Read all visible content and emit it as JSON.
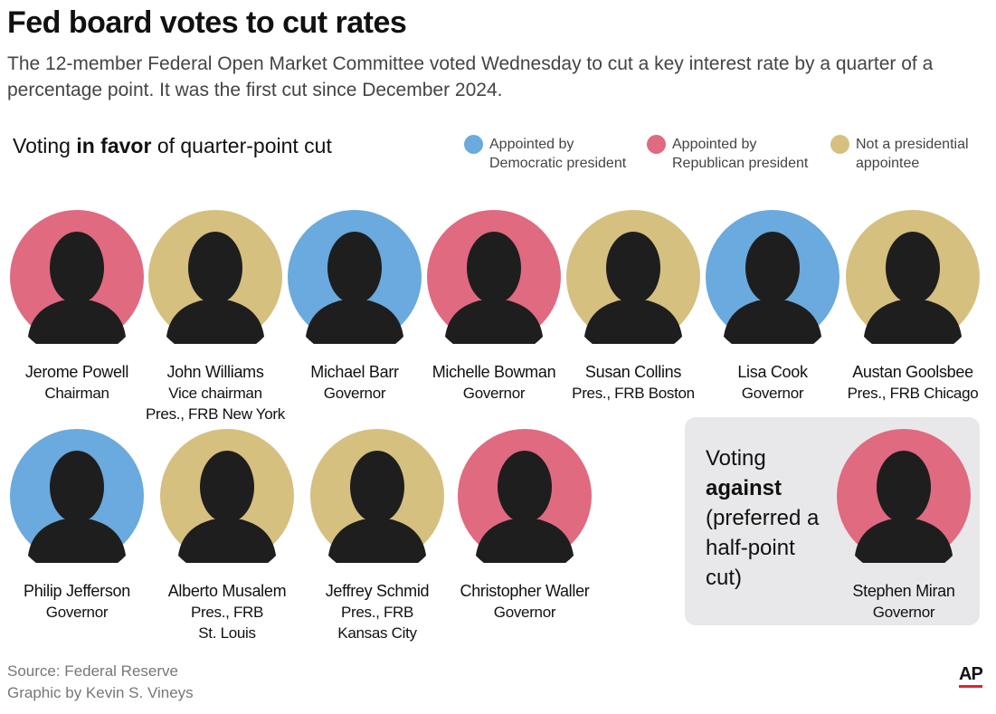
{
  "header": {
    "title": "Fed board votes to cut rates",
    "subtitle": "The 12-member Federal Open Market Committee voted Wednesday to cut a key interest rate by a quarter of a percentage point. It was the first cut since December 2024."
  },
  "in_favor": {
    "heading": [
      "Voting",
      "in favor",
      "of quarter-point cut"
    ],
    "members": [
      {
        "name": "Jerome Powell",
        "titles": [
          "Chairman"
        ],
        "color": "#e06a80"
      },
      {
        "name": "John Williams",
        "titles": [
          "Vice chairman",
          "Pres., FRB New York"
        ],
        "color": "#d6c080"
      },
      {
        "name": "Michael Barr",
        "titles": [
          "Governor"
        ],
        "color": "#6aaade"
      },
      {
        "name": "Michelle Bowman",
        "titles": [
          "Governor"
        ],
        "color": "#e06a80"
      },
      {
        "name": "Susan Collins",
        "titles": [
          "Pres., FRB Boston"
        ],
        "color": "#d6c080"
      },
      {
        "name": "Lisa Cook",
        "titles": [
          "Governor"
        ],
        "color": "#6aaade"
      },
      {
        "name": "Austan Goolsbee",
        "titles": [
          "Pres., FRB Chicago"
        ],
        "color": "#d6c080"
      },
      {
        "name": "Philip Jefferson",
        "titles": [
          "Governor"
        ],
        "color": "#6aaade"
      },
      {
        "name": "Alberto Musalem",
        "titles": [
          "Pres., FRB",
          "St. Louis"
        ],
        "color": "#d6c080"
      },
      {
        "name": "Jeffrey Schmid",
        "titles": [
          "Pres., FRB",
          "Kansas City"
        ],
        "color": "#d6c080"
      },
      {
        "name": "Christopher Waller",
        "titles": [
          "Governor"
        ],
        "color": "#e06a80"
      }
    ]
  },
  "legend": [
    {
      "label": "Appointed by Democratic president",
      "color": "#6aaade"
    },
    {
      "label": "Appointed by Republican president",
      "color": "#e06a80"
    },
    {
      "label": "Not a presidential appointee",
      "color": "#d6c080"
    }
  ],
  "against": {
    "heading": [
      "Voting",
      "against",
      "(preferred a half-point cut)"
    ],
    "members": [
      {
        "name": "Stephen Miran",
        "titles": [
          "Governor"
        ],
        "color": "#e06a80"
      }
    ]
  },
  "footer": {
    "source": "Source: Federal Reserve",
    "credit": "Graphic by Kevin S. Vineys",
    "logo": "AP"
  }
}
